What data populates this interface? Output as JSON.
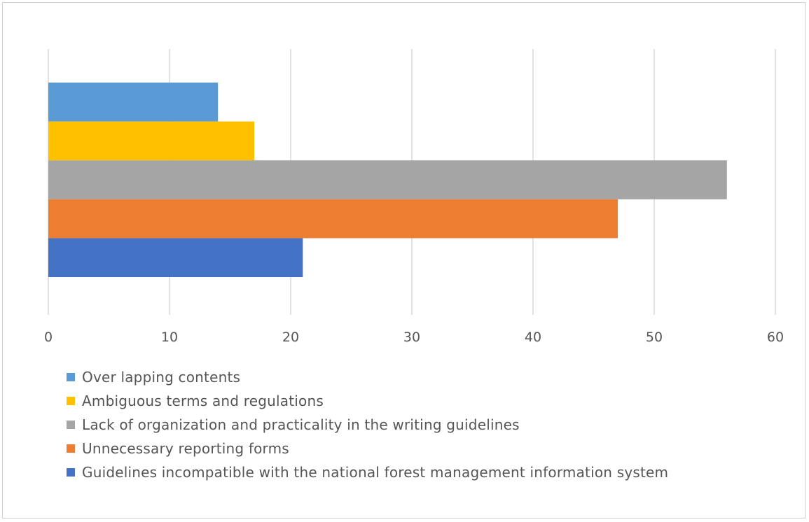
{
  "chart_data": {
    "type": "bar",
    "orientation": "horizontal",
    "title": "",
    "xlabel": "",
    "ylabel": "",
    "xlim": [
      0,
      60
    ],
    "x_ticks": [
      "0",
      "10",
      "20",
      "30",
      "40",
      "50",
      "60"
    ],
    "grid": true,
    "legend_position": "bottom",
    "series": [
      {
        "name": "Over lapping contents",
        "value": 14,
        "color": "#5B9BD5"
      },
      {
        "name": "Ambiguous terms and regulations",
        "value": 17,
        "color": "#FFC000"
      },
      {
        "name": "Lack of organization and practicality in the writing guidelines",
        "value": 56,
        "color": "#A5A5A5"
      },
      {
        "name": "Unnecessary reporting forms",
        "value": 47,
        "color": "#ED7D31"
      },
      {
        "name": "Guidelines incompatible with the national forest management information system",
        "value": 21,
        "color": "#4472C4"
      }
    ]
  }
}
